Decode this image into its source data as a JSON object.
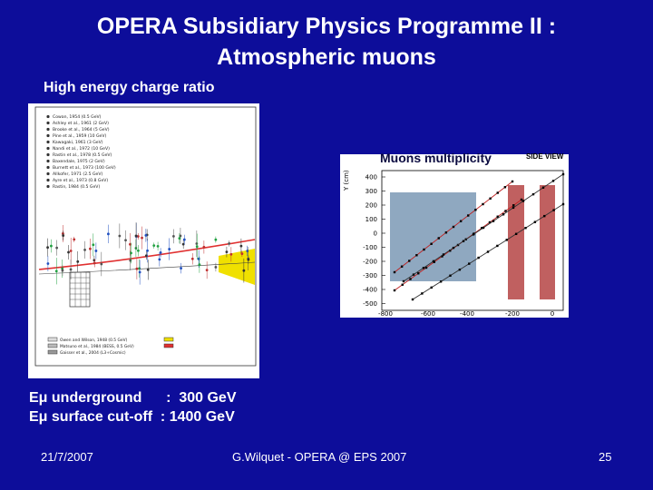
{
  "slide": {
    "title_line1": "OPERA Subsidiary Physics Programme II :",
    "title_line2": "Atmospheric muons",
    "subheading": "High energy charge ratio"
  },
  "charge_ratio_plot": {
    "legend": [
      "Cowan, 1954 (0.5 GeV)",
      "Ashley et al., 1961 (2 GeV)",
      "Brooke et al., 1964 (5 GeV)",
      "Pine et al., 1959 (10 GeV)",
      "Kawagaki, 1961 (3 GeV)",
      "Nandi et al., 1972 (10 GeV)",
      "Rastin et al., 1978 (0.5 GeV)",
      "Baxendale, 1975 (2 GeV)",
      "Burnett et al., 1973 (100 GeV)",
      "Allkofer, 1971 (2.5 GeV)",
      "Ayre et al., 1973 (0.8 GeV)",
      "Rastin, 1984 (0.5 GeV)"
    ],
    "footnotes": [
      "Owen and Wilson, 1948 (0.5 GeV)",
      "Matsuno et al., 1984 (BESS, 0.5 GeV)",
      "Gaisser et al., 2004 (L3+Cosmic)"
    ]
  },
  "multiplicity_plot": {
    "label": "Muons multiplicity",
    "view_label": "SIDE VIEW",
    "y_axis_label": "Y (cm)",
    "y_ticks": [
      "400",
      "300",
      "200",
      "100",
      "0",
      "-100",
      "-200",
      "-300",
      "-400",
      "-500"
    ],
    "x_ticks": [
      "-800",
      "-600",
      "-400",
      "-200",
      "0"
    ]
  },
  "energy": {
    "line1": "Eμ underground      :  300 GeV",
    "line2": "Eμ surface cut-off  : 1400 GeV"
  },
  "footer": {
    "date": "21/7/2007",
    "author": "G.Wilquet - OPERA @ EPS 2007",
    "page": "25"
  },
  "colors": {
    "background": "#0d0d9a",
    "model_curve": "#e03030",
    "band": "#f0e000",
    "detector_block": "#8fa8c0",
    "target_wall": "#c06060"
  }
}
